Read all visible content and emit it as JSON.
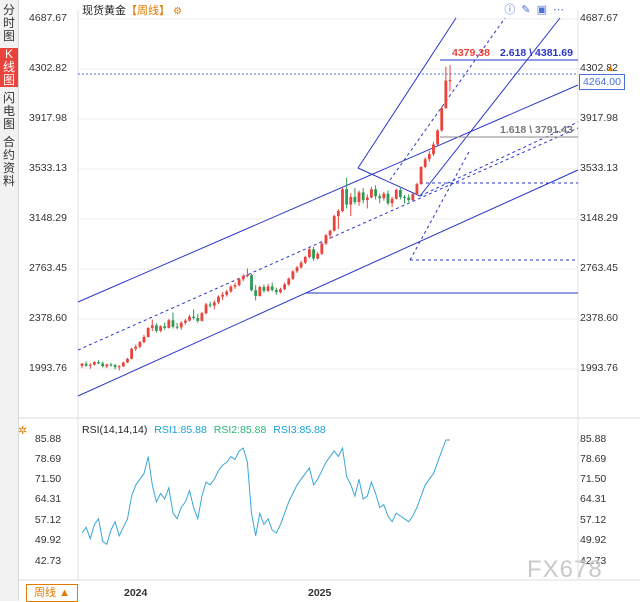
{
  "sidebar": {
    "items": [
      {
        "label": "分时图",
        "active": false
      },
      {
        "label": "K线图",
        "active": true
      },
      {
        "label": "闪电图",
        "active": false
      },
      {
        "label": "合约资料",
        "active": false
      }
    ]
  },
  "header": {
    "title": "现货黄金",
    "period": "【周线】",
    "config_icon": "settings-icon"
  },
  "top_icons": [
    "info-icon",
    "draw-icon",
    "layout-icon",
    "more-icon"
  ],
  "price_axis": {
    "ticks": [
      "4687.67",
      "4302.82",
      "3917.98",
      "3533.13",
      "3148.29",
      "2763.45",
      "2378.60",
      "1993.76"
    ]
  },
  "current_price_label": "4264.00",
  "fib_labels": {
    "high_label": "4379.38",
    "ext_2618": "2.618 \\ 4381.69",
    "ext_1618": "1.618 \\ 3791.43"
  },
  "rsi": {
    "title": "RSI(14,14,14)",
    "rsi1": "RSI1:85.88",
    "rsi2": "RSI2:85.88",
    "rsi3": "RSI3:85.88",
    "ticks": [
      "85.88",
      "78.69",
      "71.50",
      "64.31",
      "57.12",
      "49.92",
      "42.73"
    ],
    "colors": {
      "title": "#222222",
      "rsi1": "#1aa0d8",
      "rsi2": "#2bb673",
      "rsi3": "#1aa0d8"
    }
  },
  "period_button": "周线 ▲",
  "x_labels": [
    "2024",
    "2025"
  ],
  "watermark": "FX678",
  "colors": {
    "up": "#e8443b",
    "down": "#2e9a56",
    "trend": "#2a36c8",
    "rsi_line": "#3aa6d8"
  },
  "chart_data": {
    "type": "candlestick",
    "period": "weekly",
    "ylim": [
      1800,
      4750
    ],
    "x_labels": [
      "2024",
      "2025"
    ],
    "ohlc": [
      [
        2028,
        2051,
        2012,
        2045
      ],
      [
        2045,
        2062,
        2020,
        2029
      ],
      [
        2029,
        2048,
        2005,
        2037
      ],
      [
        2037,
        2064,
        2030,
        2058
      ],
      [
        2058,
        2072,
        2042,
        2047
      ],
      [
        2047,
        2061,
        2016,
        2025
      ],
      [
        2025,
        2045,
        2010,
        2039
      ],
      [
        2039,
        2052,
        2021,
        2033
      ],
      [
        2033,
        2044,
        2001,
        2018
      ],
      [
        2018,
        2035,
        1992,
        2024
      ],
      [
        2024,
        2060,
        2020,
        2055
      ],
      [
        2055,
        2090,
        2050,
        2083
      ],
      [
        2083,
        2170,
        2080,
        2162
      ],
      [
        2162,
        2195,
        2145,
        2178
      ],
      [
        2178,
        2222,
        2165,
        2214
      ],
      [
        2214,
        2270,
        2205,
        2254
      ],
      [
        2254,
        2330,
        2250,
        2325
      ],
      [
        2325,
        2390,
        2300,
        2345
      ],
      [
        2345,
        2360,
        2290,
        2302
      ],
      [
        2302,
        2345,
        2292,
        2338
      ],
      [
        2338,
        2368,
        2310,
        2325
      ],
      [
        2325,
        2395,
        2320,
        2385
      ],
      [
        2385,
        2445,
        2320,
        2334
      ],
      [
        2334,
        2365,
        2315,
        2330
      ],
      [
        2330,
        2378,
        2310,
        2365
      ],
      [
        2365,
        2395,
        2350,
        2382
      ],
      [
        2382,
        2430,
        2375,
        2413
      ],
      [
        2413,
        2470,
        2390,
        2402
      ],
      [
        2402,
        2435,
        2364,
        2380
      ],
      [
        2380,
        2450,
        2375,
        2440
      ],
      [
        2440,
        2520,
        2430,
        2508
      ],
      [
        2508,
        2530,
        2485,
        2500
      ],
      [
        2500,
        2540,
        2470,
        2525
      ],
      [
        2525,
        2580,
        2510,
        2570
      ],
      [
        2570,
        2605,
        2545,
        2584
      ],
      [
        2584,
        2625,
        2570,
        2610
      ],
      [
        2610,
        2660,
        2600,
        2648
      ],
      [
        2648,
        2680,
        2630,
        2660
      ],
      [
        2660,
        2715,
        2650,
        2705
      ],
      [
        2705,
        2745,
        2690,
        2730
      ],
      [
        2730,
        2790,
        2720,
        2740
      ],
      [
        2740,
        2750,
        2610,
        2620
      ],
      [
        2620,
        2660,
        2540,
        2575
      ],
      [
        2575,
        2655,
        2570,
        2645
      ],
      [
        2645,
        2665,
        2600,
        2615
      ],
      [
        2615,
        2670,
        2605,
        2650
      ],
      [
        2650,
        2680,
        2610,
        2622
      ],
      [
        2622,
        2640,
        2585,
        2605
      ],
      [
        2605,
        2640,
        2595,
        2628
      ],
      [
        2628,
        2680,
        2620,
        2665
      ],
      [
        2665,
        2720,
        2655,
        2710
      ],
      [
        2710,
        2775,
        2700,
        2768
      ],
      [
        2768,
        2810,
        2755,
        2798
      ],
      [
        2798,
        2850,
        2790,
        2835
      ],
      [
        2835,
        2890,
        2825,
        2880
      ],
      [
        2880,
        2955,
        2870,
        2940
      ],
      [
        2940,
        2960,
        2850,
        2868
      ],
      [
        2868,
        2920,
        2860,
        2905
      ],
      [
        2905,
        2995,
        2895,
        2985
      ],
      [
        2985,
        3060,
        2975,
        3050
      ],
      [
        3050,
        3095,
        3020,
        3085
      ],
      [
        3085,
        3210,
        3080,
        3200
      ],
      [
        3200,
        3255,
        3100,
        3240
      ],
      [
        3240,
        3420,
        3230,
        3410
      ],
      [
        3410,
        3500,
        3260,
        3290
      ],
      [
        3290,
        3380,
        3200,
        3350
      ],
      [
        3350,
        3420,
        3290,
        3310
      ],
      [
        3310,
        3400,
        3280,
        3385
      ],
      [
        3385,
        3420,
        3300,
        3325
      ],
      [
        3325,
        3370,
        3260,
        3345
      ],
      [
        3345,
        3430,
        3340,
        3410
      ],
      [
        3410,
        3440,
        3330,
        3355
      ],
      [
        3355,
        3375,
        3300,
        3340
      ],
      [
        3340,
        3390,
        3320,
        3375
      ],
      [
        3375,
        3400,
        3285,
        3300
      ],
      [
        3300,
        3350,
        3270,
        3335
      ],
      [
        3335,
        3415,
        3330,
        3405
      ],
      [
        3405,
        3420,
        3330,
        3350
      ],
      [
        3350,
        3365,
        3300,
        3345
      ],
      [
        3345,
        3370,
        3310,
        3325
      ],
      [
        3325,
        3380,
        3320,
        3372
      ],
      [
        3372,
        3460,
        3365,
        3450
      ],
      [
        3450,
        3590,
        3445,
        3585
      ],
      [
        3585,
        3660,
        3575,
        3645
      ],
      [
        3645,
        3710,
        3625,
        3685
      ],
      [
        3685,
        3780,
        3670,
        3760
      ],
      [
        3760,
        3880,
        3750,
        3870
      ],
      [
        3870,
        4060,
        3860,
        4045
      ],
      [
        4045,
        4370,
        4040,
        4260
      ],
      [
        4260,
        4381,
        4180,
        4264
      ]
    ],
    "rsi": [
      53,
      55,
      51,
      56,
      58,
      50,
      49,
      54,
      57,
      52,
      55,
      58,
      66,
      70,
      72,
      74,
      80,
      70,
      64,
      67,
      65,
      69,
      60,
      58,
      62,
      64,
      68,
      62,
      58,
      66,
      71,
      70,
      72,
      75,
      77,
      78,
      80,
      79,
      82,
      83,
      78,
      60,
      52,
      60,
      56,
      58,
      54,
      53,
      56,
      60,
      64,
      67,
      70,
      72,
      74,
      76,
      70,
      72,
      75,
      78,
      80,
      82,
      80,
      83,
      73,
      70,
      66,
      72,
      65,
      66,
      71,
      67,
      62,
      63,
      59,
      57,
      60,
      59,
      58,
      57,
      59,
      62,
      66,
      70,
      72,
      74,
      78,
      82,
      85.88,
      85.88
    ],
    "fibonacci": [
      {
        "label": "2.618",
        "value": 4381.69
      },
      {
        "label": "1.618",
        "value": 3791.43
      }
    ],
    "current_price": 4264.0,
    "rsi_ylim": [
      42.73,
      85.88
    ]
  }
}
